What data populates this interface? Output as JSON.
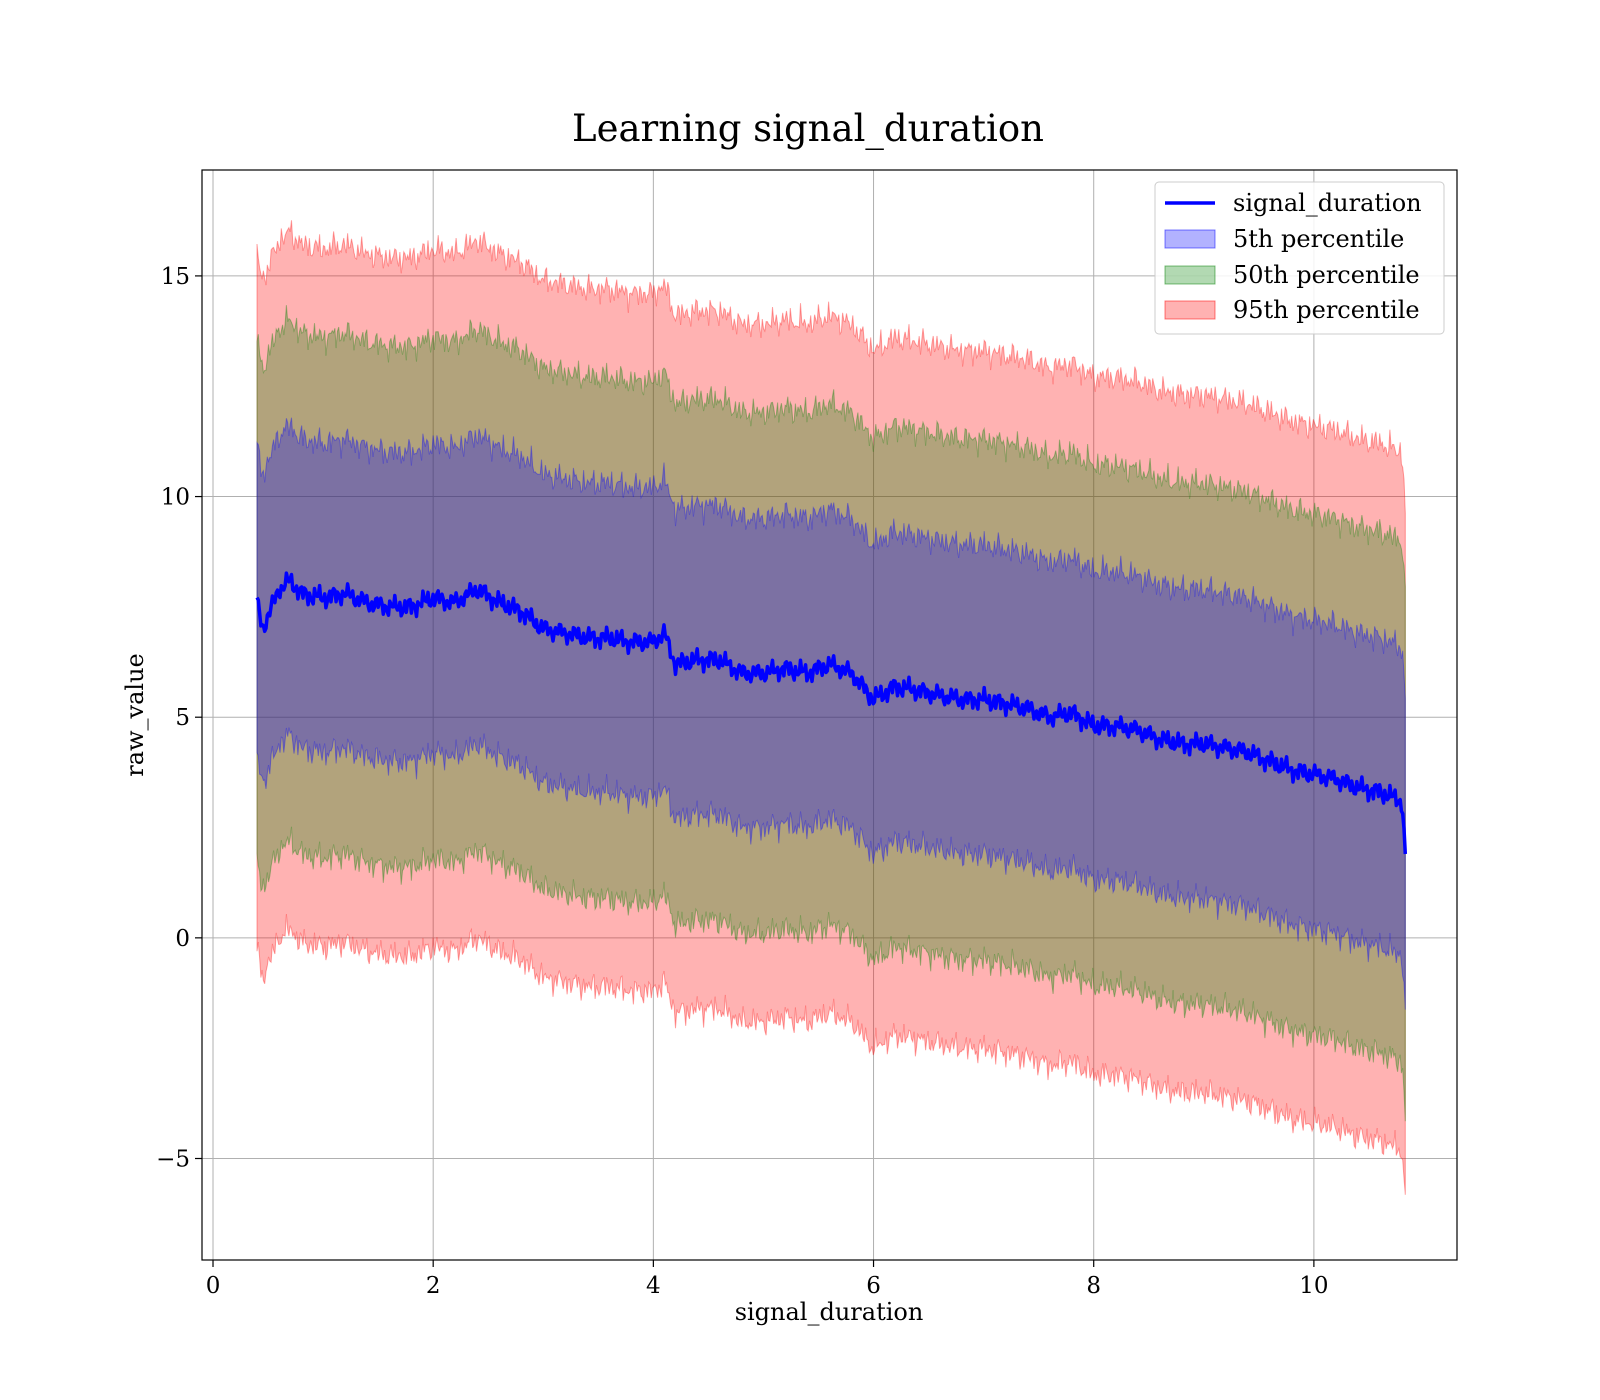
{
  "chart_data": {
    "type": "line",
    "title": "Learning signal_duration",
    "xlabel": "signal_duration",
    "ylabel": "raw_value",
    "xlim": [
      -0.1,
      11.3
    ],
    "ylim": [
      -7.3,
      17.4
    ],
    "xticks": [
      0,
      2,
      4,
      6,
      8,
      10
    ],
    "xtick_labels": [
      "0",
      "2",
      "4",
      "6",
      "8",
      "10"
    ],
    "yticks": [
      -5,
      0,
      5,
      10,
      15
    ],
    "ytick_labels": [
      "−5",
      "0",
      "5",
      "10",
      "15"
    ],
    "grid": true,
    "legend_position": "top-right",
    "line": {
      "name": "signal_duration",
      "color": "#0000ff",
      "x": [
        0.4,
        0.45,
        0.6,
        0.7,
        0.8,
        1.0,
        1.2,
        1.4,
        1.6,
        1.8,
        2.0,
        2.2,
        2.4,
        2.6,
        2.8,
        3.0,
        3.2,
        3.4,
        3.6,
        3.8,
        4.0,
        4.1,
        4.2,
        4.4,
        4.6,
        4.8,
        5.0,
        5.2,
        5.4,
        5.6,
        5.8,
        6.0,
        6.2,
        6.4,
        6.6,
        6.8,
        7.0,
        7.2,
        7.4,
        7.6,
        7.8,
        8.0,
        8.2,
        8.4,
        8.6,
        8.8,
        9.0,
        9.2,
        9.4,
        9.6,
        9.8,
        10.0,
        10.2,
        10.4,
        10.6,
        10.8,
        10.83
      ],
      "y": [
        7.6,
        7.0,
        7.9,
        8.1,
        7.8,
        7.7,
        7.8,
        7.6,
        7.5,
        7.5,
        7.7,
        7.6,
        7.9,
        7.6,
        7.4,
        7.0,
        6.9,
        6.8,
        6.8,
        6.7,
        6.7,
        6.9,
        6.2,
        6.3,
        6.3,
        6.0,
        6.0,
        6.1,
        6.0,
        6.2,
        6.0,
        5.4,
        5.7,
        5.6,
        5.5,
        5.4,
        5.4,
        5.3,
        5.2,
        5.0,
        5.1,
        4.8,
        4.8,
        4.7,
        4.5,
        4.4,
        4.4,
        4.3,
        4.2,
        4.0,
        3.8,
        3.7,
        3.6,
        3.4,
        3.3,
        3.1,
        1.9
      ]
    },
    "bands": [
      {
        "name": "5th percentile",
        "color": "#0000ff",
        "alpha": 0.3,
        "half_width_start": 3.5,
        "half_width_end": 3.5
      },
      {
        "name": "50th percentile",
        "color": "#008000",
        "alpha": 0.3,
        "half_width_start": 5.9,
        "half_width_end": 5.9
      },
      {
        "name": "95th percentile",
        "color": "#ff0000",
        "alpha": 0.3,
        "half_width_start": 7.9,
        "half_width_end": 7.9
      }
    ],
    "legend": [
      "signal_duration",
      "5th percentile",
      "50th percentile",
      "95th percentile"
    ]
  }
}
